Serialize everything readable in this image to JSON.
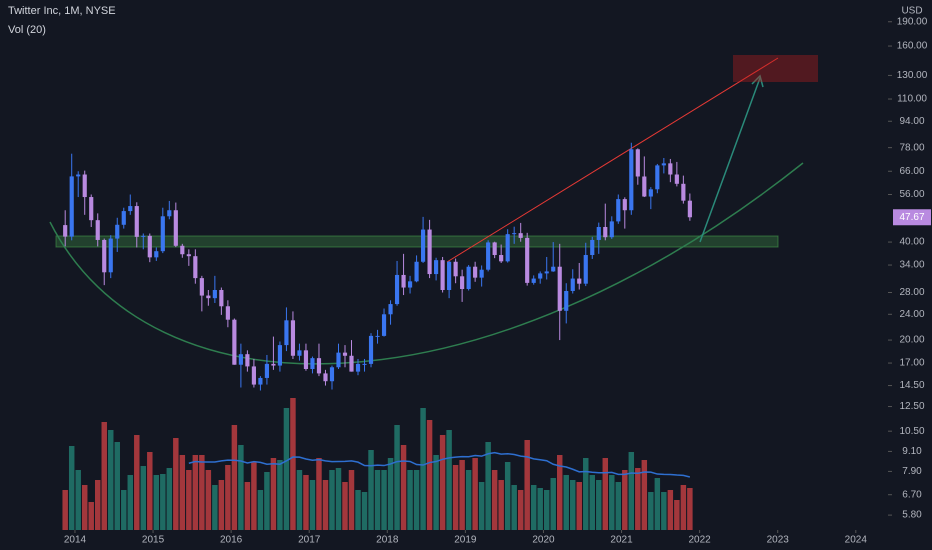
{
  "chart_data": {
    "type": "candlestick",
    "title": "Twitter Inc, 1M, NYSE",
    "subtitle": "Vol (20)",
    "currency": "USD",
    "log_scale": true,
    "x": [
      "2013-11",
      "2013-12",
      "2014-01",
      "2014-02",
      "2014-03",
      "2014-04",
      "2014-05",
      "2014-06",
      "2014-07",
      "2014-08",
      "2014-09",
      "2014-10",
      "2014-11",
      "2014-12",
      "2015-01",
      "2015-02",
      "2015-03",
      "2015-04",
      "2015-05",
      "2015-06",
      "2015-07",
      "2015-08",
      "2015-09",
      "2015-10",
      "2015-11",
      "2015-12",
      "2016-01",
      "2016-02",
      "2016-03",
      "2016-04",
      "2016-05",
      "2016-06",
      "2016-07",
      "2016-08",
      "2016-09",
      "2016-10",
      "2016-11",
      "2016-12",
      "2017-01",
      "2017-02",
      "2017-03",
      "2017-04",
      "2017-05",
      "2017-06",
      "2017-07",
      "2017-08",
      "2017-09",
      "2017-10",
      "2017-11",
      "2017-12",
      "2018-01",
      "2018-02",
      "2018-03",
      "2018-04",
      "2018-05",
      "2018-06",
      "2018-07",
      "2018-08",
      "2018-09",
      "2018-10",
      "2018-11",
      "2018-12",
      "2019-01",
      "2019-02",
      "2019-03",
      "2019-04",
      "2019-05",
      "2019-06",
      "2019-07",
      "2019-08",
      "2019-09",
      "2019-10",
      "2019-11",
      "2019-12",
      "2020-01",
      "2020-02",
      "2020-03",
      "2020-04",
      "2020-05",
      "2020-06",
      "2020-07",
      "2020-08",
      "2020-09",
      "2020-10",
      "2020-11",
      "2020-12",
      "2021-01",
      "2021-02",
      "2021-03",
      "2021-04",
      "2021-05",
      "2021-06",
      "2021-07",
      "2021-08",
      "2021-09",
      "2021-10",
      "2021-11"
    ],
    "open": [
      45.1,
      41.57,
      63.65,
      64.5,
      55.0,
      46.7,
      40.6,
      32.3,
      41.0,
      45.2,
      49.8,
      51.6,
      41.5,
      41.8,
      35.9,
      37.5,
      48,
      50.1,
      38.96,
      36.7,
      36.2,
      31.0,
      27.4,
      26.9,
      28.5,
      25.4,
      23.1,
      16.8,
      18.1,
      16.6,
      14.6,
      15.3,
      16.9,
      16.7,
      19.3,
      23.0,
      17.9,
      18.6,
      16.3,
      17.6,
      15.8,
      14.95,
      16.5,
      18.3,
      17.9,
      16.0,
      16.9,
      16.9,
      20.6,
      20.6,
      24.0,
      25.8,
      31.7,
      29.0,
      30.3,
      34.8,
      43.7,
      31.9,
      35.2,
      28.5,
      34.8,
      31.4,
      28.7,
      33.6,
      31.1,
      32.9,
      39.9,
      36.5,
      34.9,
      42.3,
      42.6,
      41.2,
      29.97,
      30.9,
      32.05,
      32.5,
      33.6,
      24.6,
      28.3,
      30.9,
      29.8,
      36.5,
      40.6,
      44.5,
      41.4,
      46.3,
      54.2,
      50.1,
      77.1,
      63.6,
      55.2,
      58.1,
      68.8,
      69.8,
      64.5,
      60.4,
      53.6
    ],
    "high": [
      50.09,
      74.73,
      66,
      66.3,
      56,
      49,
      41,
      42,
      47.5,
      51,
      55.99,
      53,
      42.5,
      42.5,
      38.5,
      51,
      53.5,
      52.9,
      39.5,
      38,
      38,
      31.5,
      28.5,
      31.5,
      29,
      26.5,
      23.3,
      19.5,
      18.6,
      17.5,
      15.5,
      18,
      20.5,
      19.8,
      25.2,
      24.5,
      19.5,
      19.5,
      17.8,
      19.5,
      16.2,
      16.7,
      19.5,
      19.3,
      20,
      17.5,
      17.5,
      21,
      21.5,
      25,
      26.5,
      35,
      36.8,
      31.5,
      36.4,
      47.8,
      46.8,
      35.8,
      36,
      35,
      35.6,
      32.9,
      34,
      34.8,
      33.9,
      40.5,
      40.1,
      39.3,
      43.8,
      44.6,
      45.8,
      42.7,
      31.6,
      32.5,
      36,
      40,
      39.5,
      29.9,
      33,
      34.5,
      39.8,
      41.5,
      45.9,
      52.5,
      48,
      56,
      54.9,
      80.75,
      77.6,
      73.3,
      59,
      69.5,
      72.5,
      72,
      70.5,
      64,
      56.4
    ],
    "low": [
      38.8,
      40.5,
      55.0,
      48.5,
      44.5,
      38.8,
      29.5,
      31.0,
      37.3,
      44.0,
      48.5,
      38.5,
      38.0,
      34.7,
      35.0,
      37.0,
      47.0,
      38.6,
      35.8,
      33.8,
      29.8,
      24.5,
      25.5,
      26.0,
      23.9,
      21.9,
      16.8,
      14.3,
      16.0,
      14.3,
      14.0,
      14.6,
      16.2,
      16.0,
      18.5,
      17.5,
      17.3,
      16.1,
      15.8,
      15.5,
      14.5,
      14.1,
      16.3,
      16.5,
      16.0,
      15.6,
      16.0,
      16.5,
      19.5,
      20.5,
      22.3,
      25.5,
      27.5,
      27.8,
      30.1,
      34.5,
      31.0,
      30.5,
      28.0,
      26.9,
      29.9,
      26.2,
      28.4,
      30.2,
      29.2,
      32.5,
      35.7,
      34.5,
      34.6,
      39.5,
      40.1,
      29.4,
      29.6,
      29.8,
      30.7,
      32.4,
      20.0,
      22.5,
      27.8,
      28.6,
      29.3,
      35.5,
      36.8,
      40.5,
      40.9,
      45.5,
      44.0,
      48.5,
      60.0,
      55.0,
      50.5,
      56.5,
      65.0,
      61.1,
      59.3,
      52.5,
      46.5
    ],
    "close": [
      41.57,
      63.65,
      64.5,
      55.0,
      46.7,
      40.6,
      32.3,
      41.0,
      45.2,
      49.8,
      51.6,
      41.5,
      41.8,
      35.9,
      37.5,
      48,
      50.1,
      38.96,
      36.7,
      36.2,
      31.0,
      27.4,
      26.9,
      28.5,
      25.4,
      23.1,
      16.8,
      18.1,
      16.6,
      14.6,
      15.3,
      16.9,
      16.7,
      19.3,
      23.0,
      17.9,
      18.6,
      16.3,
      17.6,
      15.8,
      14.95,
      16.5,
      18.3,
      17.9,
      16.0,
      16.9,
      16.9,
      20.6,
      20.6,
      24.0,
      25.8,
      31.7,
      29.0,
      30.3,
      34.8,
      43.7,
      31.9,
      35.2,
      28.5,
      34.8,
      31.4,
      28.7,
      33.6,
      31.1,
      32.9,
      39.9,
      36.5,
      34.9,
      42.3,
      42.6,
      41.2,
      29.97,
      30.9,
      32.05,
      32.5,
      33.6,
      24.6,
      28.3,
      30.9,
      29.8,
      36.5,
      40.6,
      44.5,
      41.4,
      46.3,
      54.2,
      50.1,
      77.1,
      63.6,
      55.2,
      58.1,
      68.8,
      69.8,
      64.5,
      60.4,
      53.6,
      47.67
    ],
    "volume": [
      40,
      84,
      60,
      45,
      28,
      50,
      108,
      100,
      88,
      40,
      55,
      95,
      64,
      78,
      55,
      56,
      62,
      92,
      75,
      60,
      75,
      75,
      60,
      45,
      50,
      65,
      105,
      85,
      48,
      68,
      40,
      58,
      72,
      70,
      122,
      132,
      60,
      55,
      50,
      72,
      50,
      60,
      62,
      48,
      60,
      40,
      38,
      80,
      60,
      60,
      72,
      105,
      85,
      60,
      60,
      122,
      110,
      75,
      95,
      100,
      65,
      70,
      60,
      72,
      48,
      88,
      60,
      50,
      68,
      45,
      40,
      90,
      45,
      42,
      40,
      52,
      75,
      55,
      50,
      48,
      72,
      55,
      50,
      72,
      55,
      48,
      60,
      78,
      62,
      70,
      38,
      52,
      38,
      40,
      30,
      45,
      42
    ],
    "up_color": "#3a76f0",
    "down_color": "#b98ae0",
    "volume_up_color": "#1f6b63",
    "volume_down_color": "#a3373c",
    "volume_ma_color": "#2e6fd0",
    "xlim": [
      2013.04,
      2024.31
    ],
    "xticks": [
      2014,
      2015,
      2016,
      2017,
      2018,
      2019,
      2020,
      2021,
      2022,
      2023,
      2024
    ],
    "ylim": [
      5.22,
      221.6
    ],
    "yticks": [
      {
        "value": 5.8,
        "label": "5.80"
      },
      {
        "value": 6.7,
        "label": "6.70"
      },
      {
        "value": 7.9,
        "label": "7.90"
      },
      {
        "value": 9.1,
        "label": "9.10"
      },
      {
        "value": 10.5,
        "label": "10.50"
      },
      {
        "value": 12.5,
        "label": "12.50"
      },
      {
        "value": 14.5,
        "label": "14.50"
      },
      {
        "value": 17,
        "label": "17.00"
      },
      {
        "value": 20,
        "label": "20.00"
      },
      {
        "value": 24,
        "label": "24.00"
      },
      {
        "value": 28,
        "label": "28.00"
      },
      {
        "value": 34,
        "label": "34.00"
      },
      {
        "value": 40,
        "label": "40.00"
      },
      {
        "value": 56,
        "label": "56.00"
      },
      {
        "value": 66,
        "label": "66.00"
      },
      {
        "value": 78,
        "label": "78.00"
      },
      {
        "value": 94,
        "label": "94.00"
      },
      {
        "value": 110,
        "label": "110.00"
      },
      {
        "value": 130,
        "label": "130.00"
      },
      {
        "value": 160,
        "label": "160.00"
      },
      {
        "value": 190,
        "label": "190.00"
      }
    ],
    "y2lim": [
      0,
      530
    ]
  }
}
